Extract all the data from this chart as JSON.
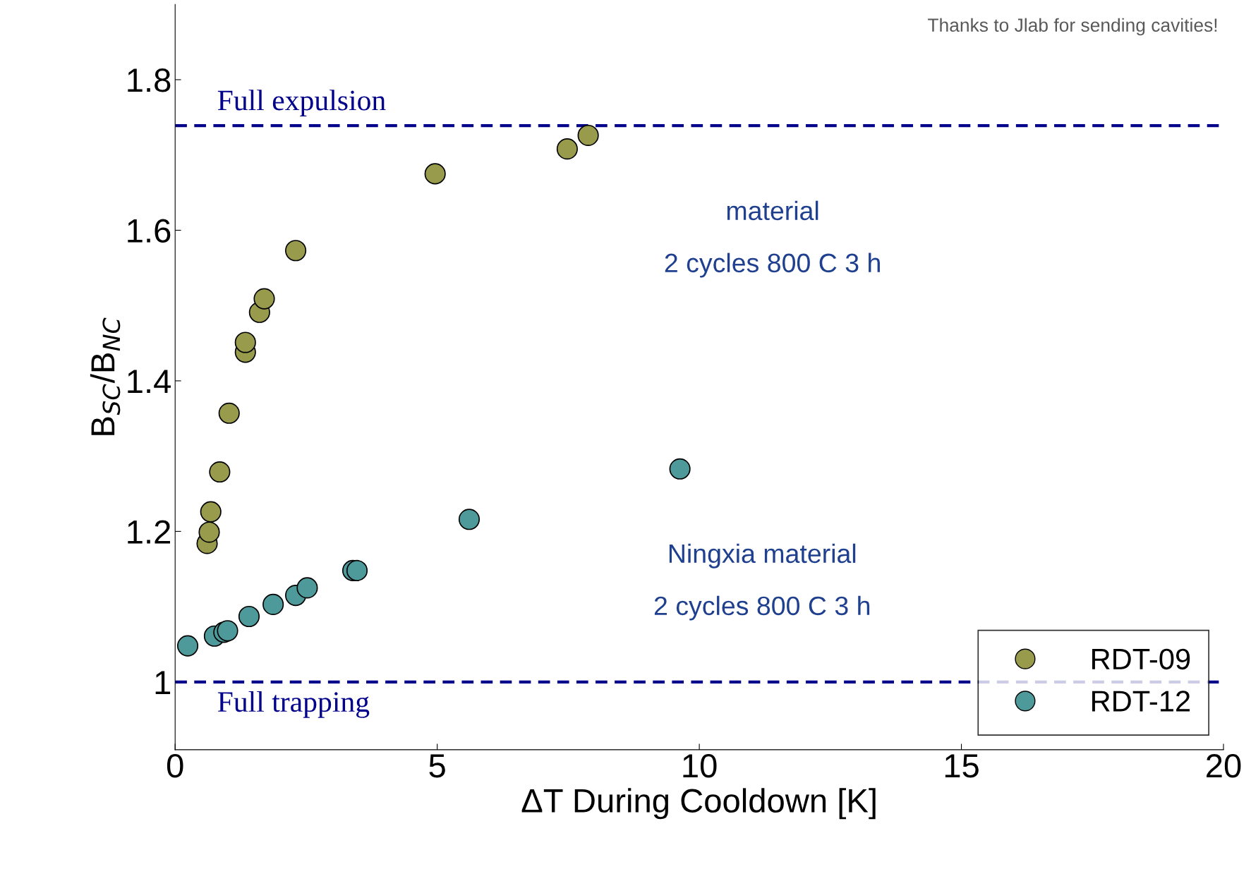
{
  "chart_data": {
    "type": "scatter",
    "xlabel": "ΔT During Cooldown [K]",
    "ylabel": "B$_{SC}$/B$_{NC}$",
    "xlim": [
      0,
      20
    ],
    "xticks": [
      0,
      5,
      10,
      15,
      20
    ],
    "ylim": [
      0.91,
      1.9
    ],
    "yticks": [
      1,
      {
        "value": 1.2,
        "label": "1.2"
      },
      {
        "value": 1.4,
        "label": "1.4"
      },
      {
        "value": 1.6,
        "label": "1.6"
      },
      {
        "value": 1.8,
        "label": "1.8"
      }
    ],
    "grid": false,
    "legend": "bottom right",
    "marker": "circle",
    "series": [
      {
        "name": "RDT-09",
        "color": "#999b4c",
        "x": [
          0.61,
          0.65,
          0.68,
          0.85,
          1.03,
          1.34,
          1.34,
          1.61,
          1.7,
          2.3,
          4.96,
          7.48,
          7.88
        ],
        "values": [
          1.184,
          1.199,
          1.226,
          1.279,
          1.357,
          1.438,
          1.451,
          1.491,
          1.509,
          1.573,
          1.675,
          1.708,
          1.726
        ]
      },
      {
        "name": "RDT-12",
        "color": "#4e9a9a",
        "x": [
          0.24,
          0.75,
          0.93,
          1.0,
          1.41,
          1.87,
          2.3,
          2.52,
          3.39,
          3.47,
          5.61,
          9.63
        ],
        "values": [
          1.048,
          1.061,
          1.066,
          1.068,
          1.087,
          1.103,
          1.115,
          1.125,
          1.148,
          1.148,
          1.216,
          1.283
        ]
      }
    ],
    "ref_lines": [
      {
        "axis": "y",
        "value": 1.739,
        "label": "Full expulsion",
        "color": "#00008b",
        "line_style": "dashed"
      },
      {
        "axis": "y",
        "value": 1.0,
        "label": "Full trapping",
        "color": "#00008b",
        "line_style": "dashed"
      }
    ],
    "annotations": [
      "Thanks to Jlab for sending cavities!",
      "material",
      "2 cycles 800 C 3 h",
      "Ningxia material",
      "2 cycles 800 C 3 h"
    ]
  }
}
